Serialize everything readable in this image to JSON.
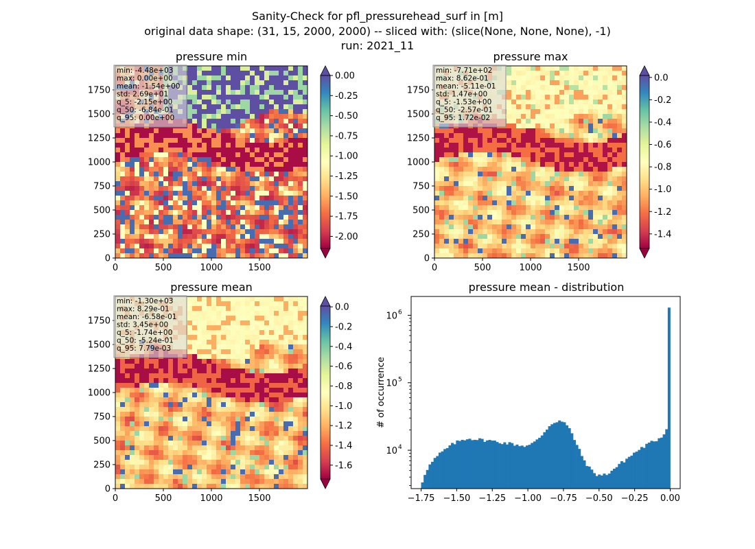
{
  "figure": {
    "title_lines": [
      "Sanity-Check for pfl_pressurehead_surf in [m]",
      "original data shape: (31, 15, 2000, 2000) -- sliced with: (slice(None, None, None), -1)",
      "run: 2021_11"
    ]
  },
  "colormap": "Spectral",
  "panels": [
    {
      "title": "pressure min",
      "xticks": [
        "0",
        "500",
        "1000",
        "1500"
      ],
      "yticks": [
        "0",
        "250",
        "500",
        "750",
        "1000",
        "1250",
        "1500",
        "1750"
      ],
      "stats": [
        "min: -4.48e+03",
        "max: 0.00e+00",
        "mean: -1.54e+00",
        "std: 2.69e+01",
        "q_5: -2.15e+00",
        "q_50: -6.84e-01",
        "q_95: 0.00e+00"
      ],
      "colorbar": {
        "ticks": [
          "0.00",
          "-0.25",
          "-0.50",
          "-0.75",
          "-1.00",
          "-1.25",
          "-1.50",
          "-1.75",
          "-2.00"
        ],
        "range": [
          -2.15,
          0.0
        ],
        "extend": "both"
      }
    },
    {
      "title": "pressure max",
      "xticks": [
        "0",
        "500",
        "1000",
        "1500"
      ],
      "yticks": [
        "0",
        "250",
        "500",
        "750",
        "1000",
        "1250",
        "1500",
        "1750"
      ],
      "stats": [
        "min: -7.71e+02",
        "max: 8.62e-01",
        "mean: -5.11e-01",
        "std: 1.47e+00",
        "q_5: -1.53e+00",
        "q_50: -2.57e-01",
        "q_95: 1.72e-02"
      ],
      "colorbar": {
        "ticks": [
          "0.0",
          "-0.2",
          "-0.4",
          "-0.6",
          "-0.8",
          "-1.0",
          "-1.2",
          "-1.4"
        ],
        "range": [
          -1.53,
          0.0172
        ],
        "extend": "both"
      }
    },
    {
      "title": "pressure mean",
      "xticks": [
        "0",
        "500",
        "1000",
        "1500"
      ],
      "yticks": [
        "0",
        "250",
        "500",
        "750",
        "1000",
        "1250",
        "1500",
        "1750"
      ],
      "stats": [
        "min: -1.30e+03",
        "max: 8.29e-01",
        "mean: -6.58e-01",
        "std: 3.45e+00",
        "q_5: -1.74e+00",
        "q_50: -5.24e-01",
        "q_95: 7.79e-03"
      ],
      "colorbar": {
        "ticks": [
          "0.0",
          "-0.2",
          "-0.4",
          "-0.6",
          "-0.8",
          "-1.0",
          "-1.2",
          "-1.4",
          "-1.6"
        ],
        "range": [
          -1.74,
          0.0078
        ],
        "extend": "both"
      }
    }
  ],
  "histogram": {
    "title": "pressure mean - distribution",
    "ylabel": "# of occurrence",
    "xticks": [
      "−1.75",
      "−1.50",
      "−1.25",
      "−1.00",
      "−0.75",
      "−0.50",
      "−0.25",
      "0.00"
    ],
    "ytick_labels": [
      {
        "base": "10",
        "exp": "4"
      },
      {
        "base": "10",
        "exp": "5"
      },
      {
        "base": "10",
        "exp": "6"
      }
    ],
    "bar_color": "#1f77b4"
  },
  "chart_data": [
    {
      "type": "heatmap",
      "title": "pressure min",
      "xlim": [
        0,
        2000
      ],
      "ylim": [
        0,
        2000
      ],
      "colorbar_range": [
        -2.15,
        0.0
      ],
      "stats": {
        "min": -4480,
        "max": 0.0,
        "mean": -1.54,
        "std": 26.9,
        "q_5": -2.15,
        "q_50": -0.684,
        "q_95": 0.0
      }
    },
    {
      "type": "heatmap",
      "title": "pressure max",
      "xlim": [
        0,
        2000
      ],
      "ylim": [
        0,
        2000
      ],
      "colorbar_range": [
        -1.53,
        0.0172
      ],
      "stats": {
        "min": -771,
        "max": 0.862,
        "mean": -0.511,
        "std": 1.47,
        "q_5": -1.53,
        "q_50": -0.257,
        "q_95": 0.0172
      }
    },
    {
      "type": "heatmap",
      "title": "pressure mean",
      "xlim": [
        0,
        2000
      ],
      "ylim": [
        0,
        2000
      ],
      "colorbar_range": [
        -1.74,
        0.00779
      ],
      "stats": {
        "min": -1300,
        "max": 0.829,
        "mean": -0.658,
        "std": 3.45,
        "q_5": -1.74,
        "q_50": -0.524,
        "q_95": 0.00779
      }
    },
    {
      "type": "bar",
      "title": "pressure mean - distribution",
      "xlabel": "",
      "ylabel": "# of occurrence",
      "xlim": [
        -1.82,
        0.07
      ],
      "ylim": [
        2700,
        1900000
      ],
      "yscale": "log",
      "bins": {
        "start": -1.75,
        "end": 0.0,
        "count": 100
      },
      "anchors": [
        [
          -1.745,
          3200
        ],
        [
          -1.73,
          4200
        ],
        [
          -1.71,
          5200
        ],
        [
          -1.68,
          6400
        ],
        [
          -1.65,
          7600
        ],
        [
          -1.62,
          8800
        ],
        [
          -1.59,
          9900
        ],
        [
          -1.56,
          11000
        ],
        [
          -1.53,
          12200
        ],
        [
          -1.5,
          13200
        ],
        [
          -1.47,
          14000
        ],
        [
          -1.44,
          14700
        ],
        [
          -1.41,
          15000
        ],
        [
          -1.38,
          14700
        ],
        [
          -1.35,
          14500
        ],
        [
          -1.32,
          14200
        ],
        [
          -1.29,
          14000
        ],
        [
          -1.26,
          13800
        ],
        [
          -1.23,
          13500
        ],
        [
          -1.2,
          13200
        ],
        [
          -1.17,
          12900
        ],
        [
          -1.14,
          12700
        ],
        [
          -1.11,
          12400
        ],
        [
          -1.08,
          12100
        ],
        [
          -1.05,
          11800
        ],
        [
          -1.02,
          11600
        ],
        [
          -0.99,
          11900
        ],
        [
          -0.96,
          12800
        ],
        [
          -0.93,
          14500
        ],
        [
          -0.9,
          17000
        ],
        [
          -0.87,
          20500
        ],
        [
          -0.84,
          24000
        ],
        [
          -0.81,
          26500
        ],
        [
          -0.78,
          27500
        ],
        [
          -0.75,
          26000
        ],
        [
          -0.72,
          22500
        ],
        [
          -0.69,
          17500
        ],
        [
          -0.66,
          12500
        ],
        [
          -0.63,
          9000
        ],
        [
          -0.6,
          6800
        ],
        [
          -0.57,
          5500
        ],
        [
          -0.54,
          4700
        ],
        [
          -0.51,
          4300
        ],
        [
          -0.48,
          4250
        ],
        [
          -0.45,
          4400
        ],
        [
          -0.42,
          4800
        ],
        [
          -0.39,
          5400
        ],
        [
          -0.36,
          6100
        ],
        [
          -0.33,
          6800
        ],
        [
          -0.3,
          7600
        ],
        [
          -0.27,
          8500
        ],
        [
          -0.24,
          9500
        ],
        [
          -0.21,
          10500
        ],
        [
          -0.18,
          11500
        ],
        [
          -0.15,
          12500
        ],
        [
          -0.12,
          13500
        ],
        [
          -0.09,
          14500
        ],
        [
          -0.06,
          16000
        ],
        [
          -0.04,
          18000
        ],
        [
          -0.025,
          22000
        ],
        [
          -0.015,
          26000
        ],
        [
          -0.008,
          37000
        ],
        [
          -0.002,
          1300000
        ]
      ]
    }
  ]
}
